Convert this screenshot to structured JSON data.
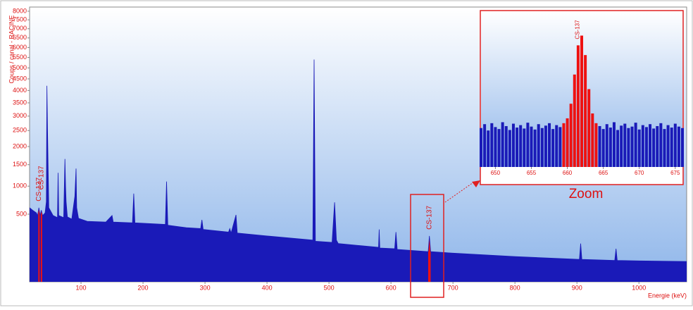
{
  "chart_data": [
    {
      "type": "area",
      "scale": "sqrt",
      "color": "#1a1ab8",
      "y_label": "Coups / canal - RACINE",
      "x_label": "Energie (keV)",
      "x": [
        17,
        22,
        28,
        30,
        32,
        34,
        36,
        38,
        42,
        44,
        45,
        46,
        48,
        55,
        62,
        63,
        64,
        72,
        74,
        75,
        76,
        78,
        85,
        90,
        92,
        93,
        96,
        110,
        140,
        150,
        152,
        183,
        185,
        187,
        236,
        238,
        240,
        270,
        293,
        295,
        297,
        338,
        340,
        342,
        350,
        352,
        400,
        474,
        476,
        478,
        505,
        509,
        512,
        515,
        580,
        581,
        582,
        606,
        608,
        610,
        660,
        662,
        664,
        700,
        800,
        904,
        906,
        908,
        961,
        963,
        965,
        1000,
        1077
      ],
      "values": [
        600,
        560,
        520,
        480,
        600,
        480,
        560,
        480,
        520,
        700,
        4200,
        2500,
        600,
        480,
        450,
        1300,
        480,
        450,
        1650,
        1000,
        700,
        460,
        430,
        800,
        1400,
        600,
        440,
        400,
        390,
        480,
        390,
        380,
        850,
        380,
        360,
        1100,
        350,
        320,
        310,
        420,
        300,
        270,
        310,
        260,
        490,
        260,
        230,
        190,
        5400,
        180,
        170,
        690,
        190,
        160,
        130,
        300,
        125,
        120,
        270,
        115,
        100,
        230,
        100,
        90,
        70,
        55,
        160,
        55,
        50,
        120,
        50,
        48,
        45
      ],
      "highlights": [
        [
          31,
          33
        ],
        [
          35,
          37
        ],
        [
          660,
          664
        ]
      ],
      "highlight_color": "#ee1111",
      "annotations": [
        "CS-137",
        "CS-137",
        "CS-137"
      ],
      "xlim": [
        17,
        1077
      ],
      "ylim": [
        0,
        8250
      ],
      "xticks": [
        100,
        200,
        300,
        400,
        500,
        600,
        700,
        800,
        900,
        1000
      ],
      "yticks": [
        500,
        1000,
        1500,
        2000,
        2500,
        3000,
        3500,
        4000,
        4500,
        5000,
        5500,
        6000,
        6500,
        7000,
        7500,
        8000
      ]
    },
    {
      "type": "bar",
      "title": "Zoom",
      "annotation": "CS-137",
      "color": "#1a1ab8",
      "highlight": [
        659.5,
        664
      ],
      "highlight_color": "#ee1111",
      "x": [
        648,
        648.5,
        649,
        649.5,
        650,
        650.5,
        651,
        651.5,
        652,
        652.5,
        653,
        653.5,
        654,
        654.5,
        655,
        655.5,
        656,
        656.5,
        657,
        657.5,
        658,
        658.5,
        659,
        659.5,
        660,
        660.5,
        661,
        661.5,
        662,
        662.5,
        663,
        663.5,
        664,
        664.5,
        665,
        665.5,
        666,
        666.5,
        667,
        667.5,
        668,
        668.5,
        669,
        669.5,
        670,
        670.5,
        671,
        671.5,
        672,
        672.5,
        673,
        673.5,
        674,
        674.5,
        675,
        675.5,
        676
      ],
      "values": [
        80,
        88,
        75,
        90,
        82,
        78,
        92,
        84,
        76,
        89,
        81,
        86,
        79,
        91,
        83,
        77,
        88,
        80,
        85,
        90,
        78,
        86,
        82,
        90,
        100,
        130,
        190,
        250,
        270,
        230,
        160,
        110,
        90,
        84,
        78,
        88,
        81,
        92,
        76,
        85,
        89,
        80,
        83,
        91,
        77,
        86,
        82,
        88,
        79,
        84,
        90,
        78,
        86,
        81,
        89,
        83,
        80
      ],
      "xlim": [
        648,
        676
      ],
      "ylim": [
        0,
        320
      ],
      "xticks": [
        650,
        655,
        660,
        665,
        670,
        675
      ]
    }
  ]
}
